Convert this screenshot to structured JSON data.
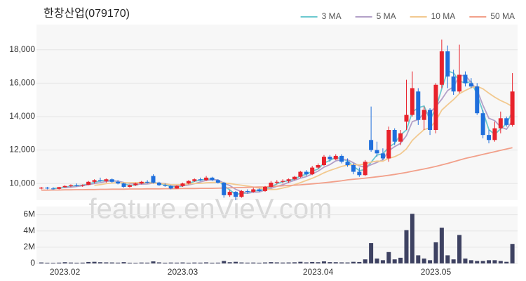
{
  "chart_data": {
    "type": "candlestick",
    "title": "한창산업(079170)",
    "watermark": "feature.enVieV.com",
    "categories": [
      null,
      null,
      null,
      null,
      "2023.02",
      null,
      null,
      null,
      null,
      null,
      null,
      null,
      null,
      null,
      null,
      null,
      null,
      null,
      null,
      null,
      null,
      null,
      null,
      null,
      "2023.03",
      null,
      null,
      null,
      null,
      null,
      null,
      null,
      null,
      null,
      null,
      null,
      null,
      null,
      null,
      null,
      null,
      null,
      null,
      null,
      null,
      null,
      null,
      "2023.04",
      null,
      null,
      null,
      null,
      null,
      null,
      null,
      null,
      null,
      null,
      null,
      null,
      null,
      null,
      null,
      null,
      null,
      null,
      null,
      "2023.05",
      null,
      null,
      null,
      null,
      null,
      null,
      null,
      null,
      null,
      null,
      null,
      null,
      null
    ],
    "open": [
      9700,
      9750,
      9700,
      9680,
      9780,
      9850,
      9900,
      9880,
      9920,
      10100,
      10200,
      10150,
      10250,
      10100,
      10000,
      9800,
      9900,
      10000,
      10100,
      10450,
      10050,
      9900,
      9850,
      9700,
      9850,
      10000,
      10150,
      10250,
      10200,
      10350,
      10200,
      10050,
      9300,
      9500,
      9200,
      9550,
      9500,
      9650,
      9550,
      9800,
      10050,
      10100,
      10150,
      10250,
      10400,
      10700,
      10550,
      10950,
      11100,
      11600,
      11450,
      11650,
      11300,
      11100,
      10700,
      10500,
      12600,
      12000,
      11800,
      11500,
      13200,
      12500,
      13700,
      14100,
      15500,
      13800,
      14400,
      13200,
      15900,
      17900,
      16400,
      15500,
      16500,
      16000,
      15800,
      14200,
      12900,
      12600,
      13300,
      13900,
      13500
    ],
    "high": [
      9800,
      9800,
      9780,
      9800,
      9900,
      9950,
      10000,
      9950,
      10150,
      10250,
      10350,
      10300,
      10300,
      10200,
      10050,
      9950,
      10050,
      10150,
      10200,
      10550,
      10100,
      10000,
      9900,
      9900,
      10050,
      10200,
      10300,
      10350,
      10450,
      10400,
      10250,
      10100,
      9600,
      9550,
      9600,
      9650,
      9750,
      9700,
      9850,
      10150,
      10200,
      10250,
      10300,
      10450,
      10750,
      10800,
      11050,
      11200,
      11700,
      11700,
      11750,
      11750,
      11500,
      11200,
      10950,
      11400,
      14600,
      12500,
      12100,
      13400,
      13300,
      13200,
      16200,
      16700,
      15700,
      14600,
      14500,
      16000,
      18600,
      18250,
      16800,
      18300,
      16700,
      16300,
      16000,
      14400,
      13200,
      13700,
      14300,
      14000,
      16600
    ],
    "low": [
      9650,
      9650,
      9620,
      9650,
      9750,
      9780,
      9820,
      9800,
      9900,
      10000,
      10100,
      10050,
      10050,
      9950,
      9750,
      9750,
      9850,
      9950,
      10000,
      10000,
      9850,
      9800,
      9650,
      9680,
      9800,
      9950,
      10100,
      10150,
      10150,
      10150,
      10000,
      9150,
      9200,
      9000,
      9150,
      9400,
      9450,
      9500,
      9500,
      9750,
      9950,
      10000,
      10050,
      10200,
      10350,
      10450,
      10500,
      10850,
      11050,
      11300,
      11400,
      11200,
      11000,
      10550,
      10400,
      10450,
      11900,
      11600,
      11400,
      11300,
      12300,
      12300,
      13200,
      14000,
      13500,
      13200,
      12900,
      13000,
      15700,
      15700,
      15300,
      15400,
      15800,
      15700,
      14100,
      12700,
      12400,
      12500,
      13000,
      13400,
      13400
    ],
    "close": [
      9750,
      9700,
      9680,
      9780,
      9850,
      9900,
      9880,
      9920,
      10100,
      10200,
      10150,
      10250,
      10100,
      10000,
      9800,
      9900,
      10000,
      10100,
      10050,
      10050,
      9900,
      9850,
      9700,
      9850,
      10000,
      10150,
      10250,
      10200,
      10350,
      10200,
      10050,
      9300,
      9500,
      9200,
      9550,
      9500,
      9650,
      9550,
      9800,
      10050,
      10100,
      10150,
      10250,
      10400,
      10700,
      10550,
      10950,
      11100,
      11600,
      11450,
      11650,
      11300,
      11100,
      10700,
      10500,
      11300,
      12000,
      11800,
      11500,
      13200,
      12500,
      13000,
      14100,
      15700,
      13800,
      14400,
      13200,
      15900,
      17900,
      16400,
      15500,
      16500,
      16000,
      15800,
      14200,
      12900,
      12600,
      13300,
      13900,
      13500,
      15500
    ],
    "up_color": "#e8232c",
    "down_color": "#1f6fdc",
    "ylim": [
      9000,
      19500
    ],
    "yticks": [
      {
        "value": 10000,
        "label": "10,000"
      },
      {
        "value": 12000,
        "label": "12,000"
      },
      {
        "value": 14000,
        "label": "14,000"
      },
      {
        "value": 16000,
        "label": "16,000"
      },
      {
        "value": 18000,
        "label": "18,000"
      }
    ],
    "grid": true,
    "legend": "top-right",
    "series": [
      {
        "name": "3 MA",
        "color": "#6cc9cf",
        "values": [
          null,
          null,
          9710,
          9720,
          9770,
          9840,
          9880,
          9900,
          9970,
          10070,
          10150,
          10200,
          10170,
          10120,
          9970,
          9900,
          9900,
          10000,
          10050,
          10070,
          10000,
          9930,
          9820,
          9800,
          9850,
          10000,
          10130,
          10200,
          10270,
          10250,
          10200,
          9850,
          9620,
          9330,
          9420,
          9420,
          9570,
          9570,
          9670,
          9800,
          9980,
          10100,
          10170,
          10270,
          10450,
          10550,
          10730,
          10870,
          11220,
          11380,
          11570,
          11470,
          11350,
          11030,
          10770,
          10830,
          11270,
          11700,
          11770,
          12170,
          12400,
          12900,
          13200,
          14270,
          14530,
          14630,
          13800,
          14500,
          15670,
          16730,
          16600,
          16130,
          16000,
          16100,
          15330,
          14300,
          13230,
          12930,
          13270,
          13570,
          14300
        ]
      },
      {
        "name": "5 MA",
        "color": "#b3a0c8",
        "values": [
          null,
          null,
          null,
          null,
          9750,
          9780,
          9820,
          9870,
          9930,
          10000,
          10050,
          10120,
          10160,
          10140,
          10060,
          10010,
          9960,
          9960,
          9970,
          10020,
          10020,
          9990,
          9910,
          9870,
          9860,
          9910,
          9990,
          10090,
          10190,
          10230,
          10210,
          10020,
          9880,
          9650,
          9520,
          9410,
          9480,
          9490,
          9610,
          9710,
          9830,
          9930,
          10070,
          10190,
          10320,
          10410,
          10570,
          10740,
          10980,
          11130,
          11350,
          11420,
          11420,
          11240,
          11050,
          10980,
          11120,
          11260,
          11420,
          11960,
          12200,
          12400,
          12860,
          13700,
          13820,
          14200,
          14240,
          14600,
          15040,
          15560,
          15780,
          16440,
          16460,
          16040,
          15600,
          14680,
          13900,
          13760,
          13380,
          13240,
          13760
        ]
      },
      {
        "name": "10 MA",
        "color": "#f2c98f",
        "values": [
          null,
          null,
          null,
          null,
          null,
          null,
          null,
          null,
          null,
          9890,
          9930,
          9990,
          10030,
          10050,
          10040,
          10040,
          10050,
          10060,
          10050,
          10030,
          10010,
          9970,
          9930,
          9920,
          9940,
          9970,
          10000,
          10010,
          10040,
          10060,
          10080,
          10020,
          10000,
          9940,
          9900,
          9850,
          9790,
          9720,
          9670,
          9640,
          9650,
          9730,
          9810,
          9930,
          10050,
          10180,
          10310,
          10460,
          10640,
          10780,
          10900,
          11020,
          11100,
          11130,
          11110,
          11180,
          11280,
          11340,
          11330,
          11510,
          11600,
          11770,
          12070,
          12580,
          12910,
          13220,
          13340,
          13750,
          14390,
          14710,
          15020,
          15370,
          15560,
          15730,
          15810,
          15660,
          15400,
          15160,
          14960,
          14800,
          14600
        ]
      },
      {
        "name": "50 MA",
        "color": "#f2a08a",
        "values": [
          9600,
          9600,
          9610,
          9610,
          9620,
          9620,
          9630,
          9630,
          9640,
          9640,
          9650,
          9650,
          9660,
          9660,
          9660,
          9670,
          9670,
          9670,
          9680,
          9680,
          9680,
          9690,
          9690,
          9690,
          9700,
          9700,
          9700,
          9710,
          9710,
          9710,
          9720,
          9730,
          9740,
          9750,
          9760,
          9770,
          9780,
          9790,
          9800,
          9820,
          9840,
          9860,
          9880,
          9900,
          9920,
          9950,
          9980,
          10010,
          10040,
          10080,
          10120,
          10160,
          10220,
          10250,
          10280,
          10320,
          10360,
          10400,
          10440,
          10490,
          10540,
          10600,
          10660,
          10730,
          10800,
          10870,
          10940,
          11020,
          11110,
          11200,
          11300,
          11400,
          11500,
          11580,
          11660,
          11740,
          11820,
          11900,
          11980,
          12060,
          12140
        ]
      }
    ],
    "volume": {
      "color": "#3e4262",
      "values": [
        120000,
        90000,
        80000,
        100000,
        150000,
        110000,
        90000,
        100000,
        180000,
        200000,
        150000,
        130000,
        120000,
        100000,
        160000,
        90000,
        80000,
        110000,
        100000,
        250000,
        130000,
        90000,
        110000,
        100000,
        120000,
        90000,
        110000,
        100000,
        130000,
        90000,
        100000,
        300000,
        150000,
        200000,
        120000,
        100000,
        110000,
        90000,
        120000,
        160000,
        130000,
        110000,
        120000,
        140000,
        200000,
        130000,
        180000,
        150000,
        250000,
        160000,
        150000,
        130000,
        120000,
        200000,
        180000,
        500000,
        2500000,
        600000,
        400000,
        1400000,
        500000,
        700000,
        4100000,
        6100000,
        1000000,
        600000,
        400000,
        2600000,
        4400000,
        1000000,
        500000,
        3500000,
        600000,
        400000,
        300000,
        300000,
        400000,
        400000,
        300000,
        200000,
        2400000
      ],
      "ylim": [
        0,
        7000000
      ],
      "yticks": [
        0,
        {
          "value": 2000000,
          "label": "2M"
        },
        {
          "value": 4000000,
          "label": "4M"
        },
        {
          "value": 6000000,
          "label": "6M"
        }
      ]
    }
  }
}
